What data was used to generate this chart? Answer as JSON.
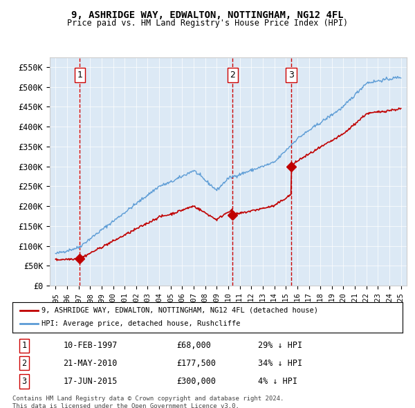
{
  "title1": "9, ASHRIDGE WAY, EDWALTON, NOTTINGHAM, NG12 4FL",
  "title2": "Price paid vs. HM Land Registry's House Price Index (HPI)",
  "background_color": "#dce9f5",
  "plot_bg_color": "#dce9f5",
  "hpi_color": "#5b9bd5",
  "price_color": "#c00000",
  "vline_color": "#cc0000",
  "sale_dates": [
    1997.11,
    2010.39,
    2015.46
  ],
  "sale_prices": [
    68000,
    177500,
    300000
  ],
  "sale_labels": [
    "1",
    "2",
    "3"
  ],
  "legend_label_price": "9, ASHRIDGE WAY, EDWALTON, NOTTINGHAM, NG12 4FL (detached house)",
  "legend_label_hpi": "HPI: Average price, detached house, Rushcliffe",
  "table_entries": [
    {
      "num": "1",
      "date": "10-FEB-1997",
      "price": "£68,000",
      "hpi": "29% ↓ HPI"
    },
    {
      "num": "2",
      "date": "21-MAY-2010",
      "price": "£177,500",
      "hpi": "34% ↓ HPI"
    },
    {
      "num": "3",
      "date": "17-JUN-2015",
      "price": "£300,000",
      "hpi": "4% ↓ HPI"
    }
  ],
  "footer": "Contains HM Land Registry data © Crown copyright and database right 2024.\nThis data is licensed under the Open Government Licence v3.0.",
  "ylim": [
    0,
    575000
  ],
  "xlim": [
    1994.5,
    2025.5
  ],
  "yticks": [
    0,
    50000,
    100000,
    150000,
    200000,
    250000,
    300000,
    350000,
    400000,
    450000,
    500000,
    550000
  ],
  "ytick_labels": [
    "£0",
    "£50K",
    "£100K",
    "£150K",
    "£200K",
    "£250K",
    "£300K",
    "£350K",
    "£400K",
    "£450K",
    "£500K",
    "£550K"
  ]
}
